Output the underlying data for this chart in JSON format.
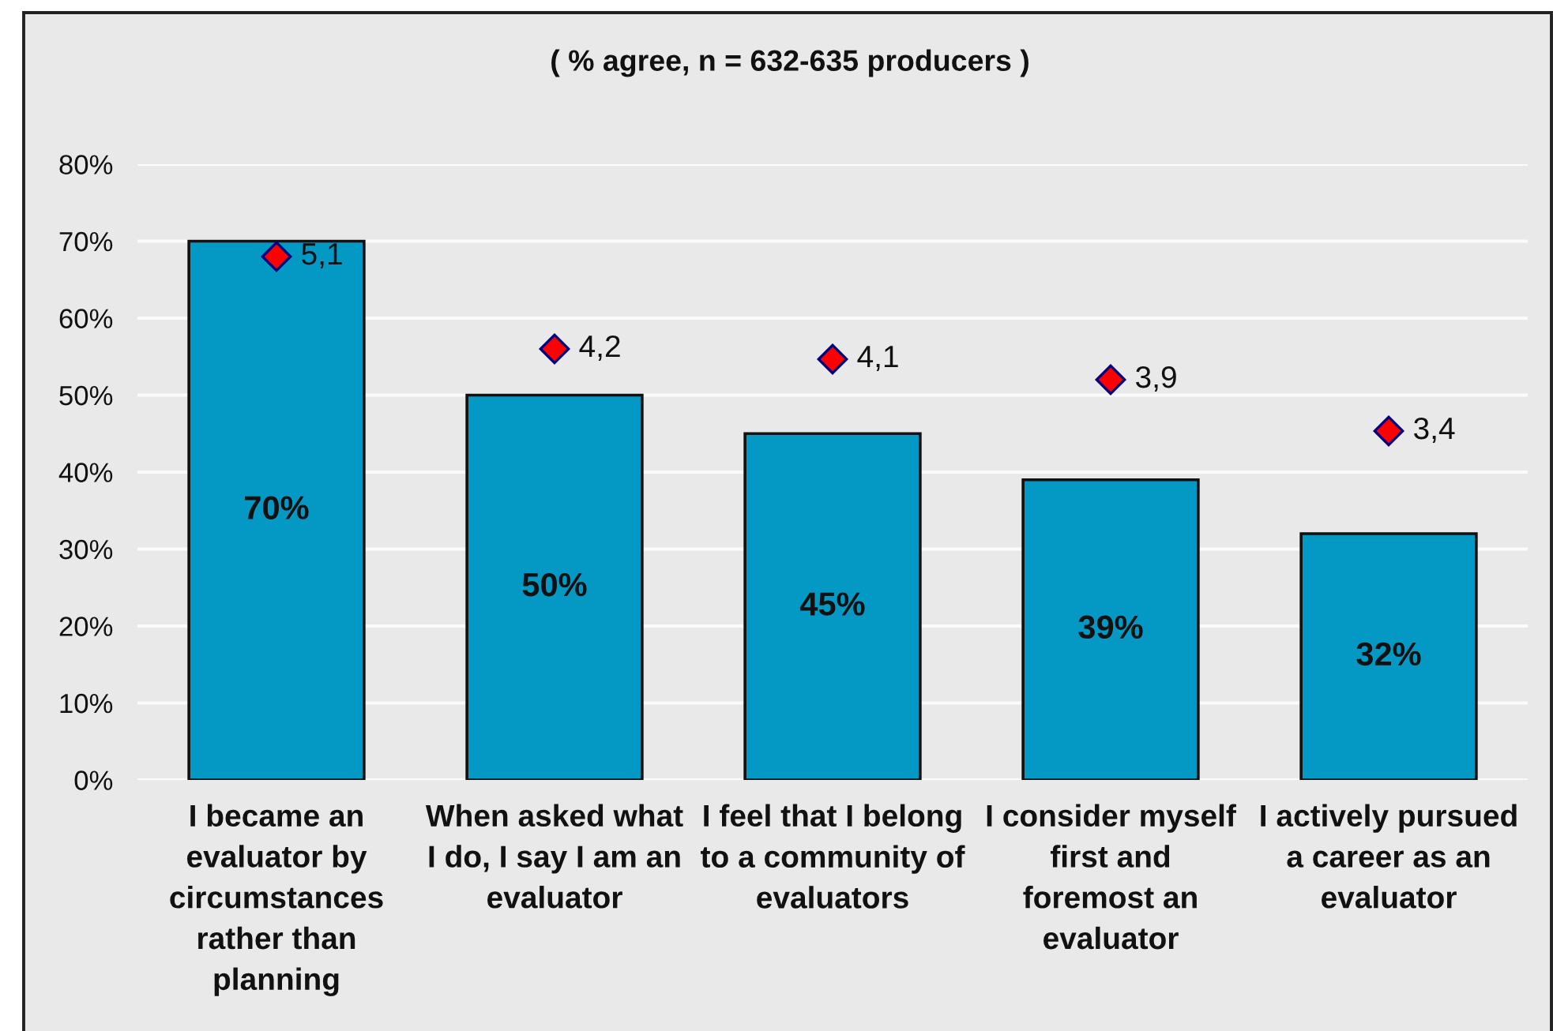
{
  "chart_data": {
    "type": "bar",
    "title": "( % agree, n = 632-635 producers )",
    "categories": [
      "I became an\nevaluator by\ncircumstances\nrather than\nplanning",
      "When asked what\nI do, I say I am an\nevaluator",
      "I feel that I belong\nto a community of\nevaluators",
      "I consider myself\nfirst and\nforemost an\nevaluator",
      "I actively pursued\na career as an\nevaluator"
    ],
    "series": [
      {
        "color": "#0399c4",
        "values": [
          70,
          50,
          45,
          39,
          32
        ],
        "value_labels": [
          "70%",
          "50%",
          "45%",
          "39%",
          "32%"
        ]
      },
      {
        "type": "scatter",
        "axis": "y2",
        "marker": "diamond",
        "color": "#ff0000",
        "values": [
          5.1,
          4.2,
          4.1,
          3.9,
          3.4
        ],
        "value_labels": [
          "5,1",
          "4,2",
          "4,1",
          "3,9",
          "3,4"
        ]
      }
    ],
    "ylim": [
      0,
      80
    ],
    "yticks": [
      {
        "value": 0,
        "label": "0%"
      },
      {
        "value": 10,
        "label": "10%"
      },
      {
        "value": 20,
        "label": "20%"
      },
      {
        "value": 30,
        "label": "30%"
      },
      {
        "value": 40,
        "label": "40%"
      },
      {
        "value": 50,
        "label": "50%"
      },
      {
        "value": 60,
        "label": "60%"
      },
      {
        "value": 70,
        "label": "70%"
      },
      {
        "value": 80,
        "label": "80%"
      }
    ],
    "y2lim": [
      0,
      6
    ],
    "grid": "y"
  }
}
